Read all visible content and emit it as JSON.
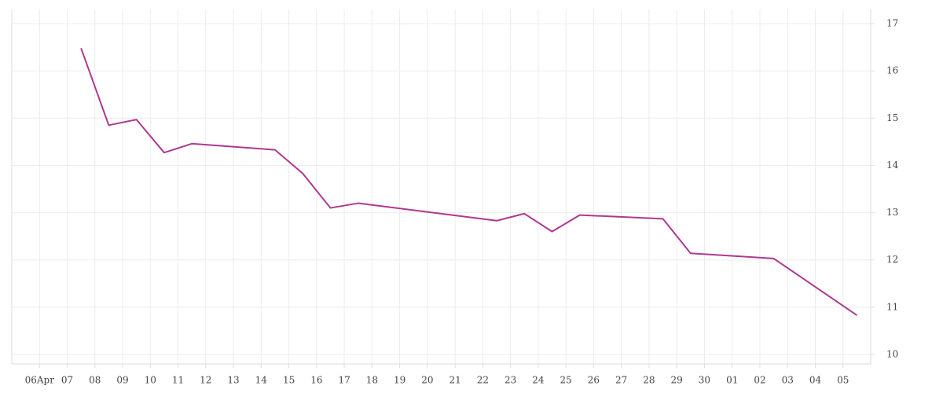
{
  "chart_data": {
    "type": "line",
    "x": [
      1.5,
      2.5,
      3.5,
      4.5,
      5.5,
      8.5,
      9.5,
      10.5,
      11.5,
      16.5,
      17.5,
      18.5,
      19.5,
      22.5,
      23.5,
      26.5,
      29.5
    ],
    "series": [
      {
        "color": "#b0388f",
        "values": [
          16.48,
          14.85,
          14.97,
          14.27,
          14.46,
          14.33,
          13.83,
          13.1,
          13.2,
          12.83,
          12.98,
          12.6,
          12.95,
          12.87,
          12.14,
          12.03,
          10.83
        ]
      }
    ],
    "xlim": [
      -1,
      30
    ],
    "xticks": [
      {
        "value": 0,
        "label": "06Apr"
      },
      {
        "value": 1,
        "label": "07"
      },
      {
        "value": 2,
        "label": "08"
      },
      {
        "value": 3,
        "label": "09"
      },
      {
        "value": 4,
        "label": "10"
      },
      {
        "value": 5,
        "label": "11"
      },
      {
        "value": 6,
        "label": "12"
      },
      {
        "value": 7,
        "label": "13"
      },
      {
        "value": 8,
        "label": "14"
      },
      {
        "value": 9,
        "label": "15"
      },
      {
        "value": 10,
        "label": "16"
      },
      {
        "value": 11,
        "label": "17"
      },
      {
        "value": 12,
        "label": "18"
      },
      {
        "value": 13,
        "label": "19"
      },
      {
        "value": 14,
        "label": "20"
      },
      {
        "value": 15,
        "label": "21"
      },
      {
        "value": 16,
        "label": "22"
      },
      {
        "value": 17,
        "label": "23"
      },
      {
        "value": 18,
        "label": "24"
      },
      {
        "value": 19,
        "label": "25"
      },
      {
        "value": 20,
        "label": "26"
      },
      {
        "value": 21,
        "label": "27"
      },
      {
        "value": 22,
        "label": "28"
      },
      {
        "value": 23,
        "label": "29"
      },
      {
        "value": 24,
        "label": "30"
      },
      {
        "value": 25,
        "label": "01"
      },
      {
        "value": 26,
        "label": "02"
      },
      {
        "value": 27,
        "label": "03"
      },
      {
        "value": 28,
        "label": "04"
      },
      {
        "value": 29,
        "label": "05"
      }
    ],
    "ylim": [
      9.8,
      17.3
    ],
    "yticks": [
      10,
      11,
      12,
      13,
      14,
      15,
      16,
      17
    ],
    "grid": true
  }
}
